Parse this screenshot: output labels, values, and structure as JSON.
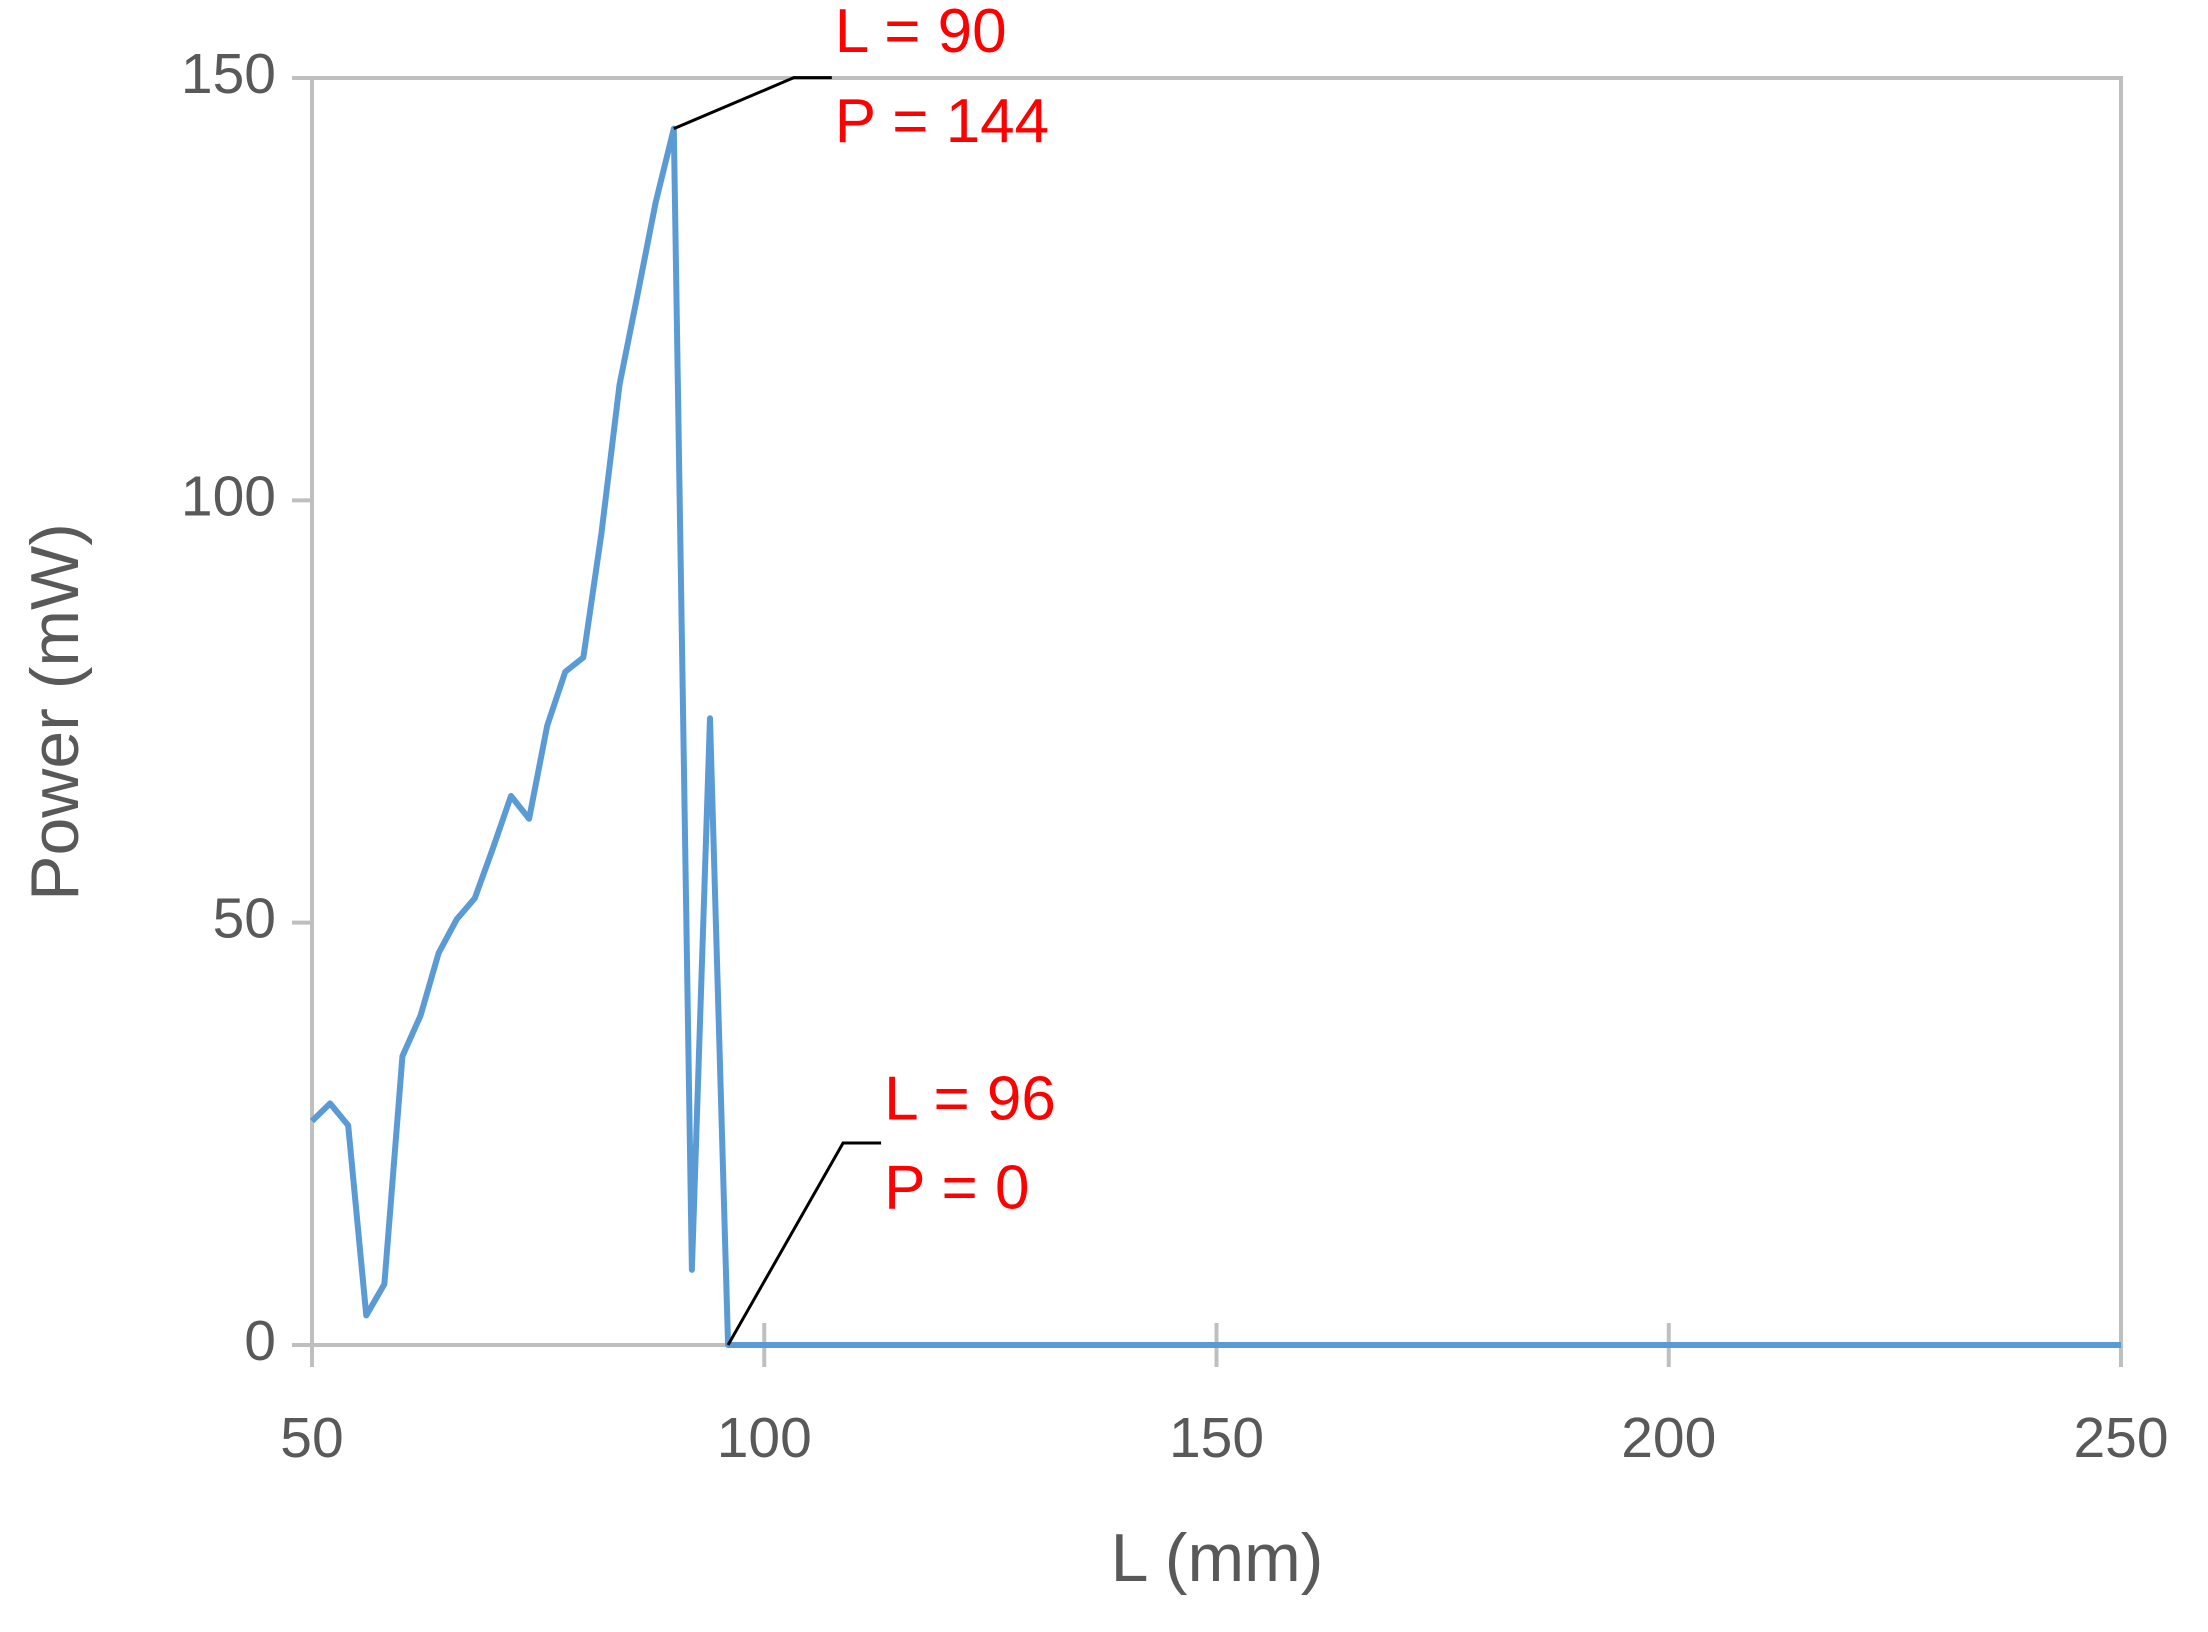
{
  "chart_data": {
    "type": "line",
    "x_label": "L (mm)",
    "y_label": "Power (mW)",
    "x": [
      50,
      52,
      54,
      56,
      58,
      60,
      62,
      64,
      66,
      68,
      70,
      72,
      74,
      76,
      78,
      80,
      82,
      84,
      86,
      88,
      90,
      92,
      94,
      96,
      250
    ],
    "series": [
      {
        "color": "#5b9bd5",
        "values": [
          26.5,
          28.6,
          26,
          3.5,
          7.2,
          34.2,
          39,
          46.4,
          50.4,
          52.9,
          58.8,
          65,
          62.3,
          73.3,
          79.7,
          81.4,
          96.1,
          113.7,
          124.4,
          135.3,
          144,
          8.9,
          74.2,
          0,
          0
        ]
      }
    ],
    "xlim": [
      50,
      250
    ],
    "xticks": [
      50,
      100,
      150,
      200,
      250
    ],
    "ylim": [
      0,
      150
    ],
    "yticks": [
      0,
      50,
      100,
      150
    ],
    "grid": false,
    "annotations": [
      {
        "x": 90,
        "y": 144,
        "lines": [
          "L = 90",
          "P = 144"
        ],
        "color": "#ff0000"
      },
      {
        "x": 96,
        "y": 0,
        "lines": [
          "L = 96",
          "P = 0"
        ],
        "color": "#ff0000"
      }
    ]
  }
}
